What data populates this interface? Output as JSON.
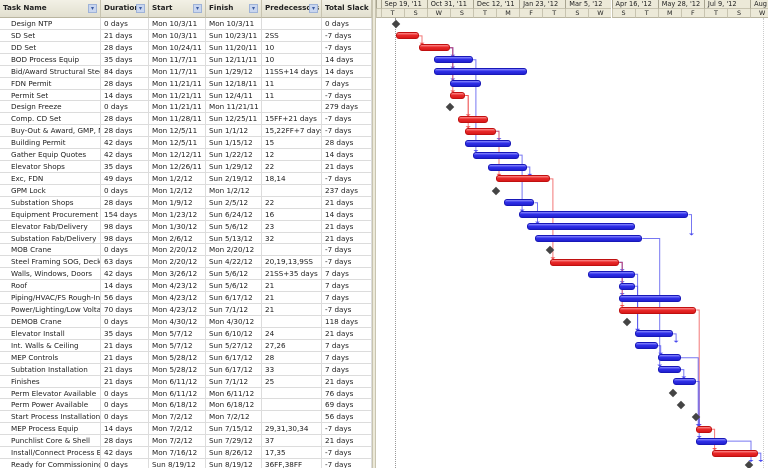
{
  "columns": [
    {
      "key": "name",
      "label": "Task Name",
      "dropdown": true
    },
    {
      "key": "duration",
      "label": "Duration",
      "dropdown": true
    },
    {
      "key": "start",
      "label": "Start",
      "dropdown": true
    },
    {
      "key": "finish",
      "label": "Finish",
      "dropdown": true
    },
    {
      "key": "predecessors",
      "label": "Predecessors",
      "dropdown": true
    },
    {
      "key": "slack",
      "label": "Total Slack",
      "dropdown": false
    }
  ],
  "dropdown_icon": "▾",
  "timescale": {
    "major": [
      "Sep 19, '11",
      "Oct 31, '11",
      "Dec 12, '11",
      "Jan 23, '12",
      "Mar 5, '12",
      "Apr 16, '12",
      "May 28, '12",
      "Jul 9, '12",
      "Aug :"
    ],
    "minor": [
      "T",
      "S",
      "W",
      "S",
      "T",
      "M",
      "F",
      "T",
      "S",
      "W",
      "S",
      "T",
      "M",
      "F",
      "T",
      "S",
      "W",
      "S",
      "T",
      "M"
    ]
  },
  "colors": {
    "critical": "#e82a2a",
    "normal": "#3030e8",
    "milestone": "#444444"
  },
  "tasks": [
    {
      "name": "Design NTP",
      "duration": "0 days",
      "start": "Mon 10/3/11",
      "finish": "Mon 10/3/11",
      "predecessors": "",
      "slack": "0 days",
      "s": 14,
      "d": 0,
      "crit": false
    },
    {
      "name": "SD Set",
      "duration": "21 days",
      "start": "Mon 10/3/11",
      "finish": "Sun 10/23/11",
      "predecessors": "2SS",
      "slack": "-7 days",
      "s": 14,
      "d": 21,
      "crit": true
    },
    {
      "name": "DD Set",
      "duration": "28 days",
      "start": "Mon 10/24/11",
      "finish": "Sun 11/20/11",
      "predecessors": "10",
      "slack": "-7 days",
      "s": 35,
      "d": 28,
      "crit": true
    },
    {
      "name": "BOD Process Equip",
      "duration": "35 days",
      "start": "Mon 11/7/11",
      "finish": "Sun 12/11/11",
      "predecessors": "10",
      "slack": "14 days",
      "s": 49,
      "d": 35,
      "crit": false
    },
    {
      "name": "Bid/Award Structural Steel, S",
      "duration": "84 days",
      "start": "Mon 11/7/11",
      "finish": "Sun 1/29/12",
      "predecessors": "11SS+14 days",
      "slack": "14 days",
      "s": 49,
      "d": 84,
      "crit": false
    },
    {
      "name": "FDN Permit",
      "duration": "28 days",
      "start": "Mon 11/21/11",
      "finish": "Sun 12/18/11",
      "predecessors": "11",
      "slack": "7 days",
      "s": 63,
      "d": 28,
      "crit": false
    },
    {
      "name": "Permit Set",
      "duration": "14 days",
      "start": "Mon 11/21/11",
      "finish": "Sun 12/4/11",
      "predecessors": "11",
      "slack": "-7 days",
      "s": 63,
      "d": 14,
      "crit": true
    },
    {
      "name": "Design Freeze",
      "duration": "0 days",
      "start": "Mon 11/21/11",
      "finish": "Mon 11/21/11",
      "predecessors": "",
      "slack": "279 days",
      "s": 63,
      "d": 0,
      "crit": false
    },
    {
      "name": "Comp. CD Set",
      "duration": "28 days",
      "start": "Mon 11/28/11",
      "finish": "Sun 12/25/11",
      "predecessors": "15FF+21 days",
      "slack": "-7 days",
      "s": 70,
      "d": 28,
      "crit": true
    },
    {
      "name": "Buy-Out & Award, GMP, Mob",
      "duration": "28 days",
      "start": "Mon 12/5/11",
      "finish": "Sun 1/1/12",
      "predecessors": "15,22FF+7 days",
      "slack": "-7 days",
      "s": 77,
      "d": 28,
      "crit": true
    },
    {
      "name": "Building Permit",
      "duration": "42 days",
      "start": "Mon 12/5/11",
      "finish": "Sun 1/15/12",
      "predecessors": "15",
      "slack": "28 days",
      "s": 77,
      "d": 42,
      "crit": false
    },
    {
      "name": "Gather Equip Quotes",
      "duration": "42 days",
      "start": "Mon 12/12/11",
      "finish": "Sun 1/22/12",
      "predecessors": "12",
      "slack": "14 days",
      "s": 84,
      "d": 42,
      "crit": false
    },
    {
      "name": "Elevator Shops",
      "duration": "35 days",
      "start": "Mon 12/26/11",
      "finish": "Sun 1/29/12",
      "predecessors": "22",
      "slack": "21 days",
      "s": 98,
      "d": 35,
      "crit": false
    },
    {
      "name": "Exc, FDN",
      "duration": "49 days",
      "start": "Mon 1/2/12",
      "finish": "Sun 2/19/12",
      "predecessors": "18,14",
      "slack": "-7 days",
      "s": 105,
      "d": 49,
      "crit": true
    },
    {
      "name": "GPM Lock",
      "duration": "0 days",
      "start": "Mon 1/2/12",
      "finish": "Mon 1/2/12",
      "predecessors": "",
      "slack": "237 days",
      "s": 105,
      "d": 0,
      "crit": false
    },
    {
      "name": "Substation Shops",
      "duration": "28 days",
      "start": "Mon 1/9/12",
      "finish": "Sun 2/5/12",
      "predecessors": "22",
      "slack": "21 days",
      "s": 112,
      "d": 28,
      "crit": false
    },
    {
      "name": "Equipment Procurement",
      "duration": "154 days",
      "start": "Mon 1/23/12",
      "finish": "Sun 6/24/12",
      "predecessors": "16",
      "slack": "14 days",
      "s": 126,
      "d": 154,
      "crit": false
    },
    {
      "name": "Elevator Fab/Delivery",
      "duration": "98 days",
      "start": "Mon 1/30/12",
      "finish": "Sun 5/6/12",
      "predecessors": "23",
      "slack": "21 days",
      "s": 133,
      "d": 98,
      "crit": false
    },
    {
      "name": "Substation Fab/Delivery",
      "duration": "98 days",
      "start": "Mon 2/6/12",
      "finish": "Sun 5/13/12",
      "predecessors": "32",
      "slack": "21 days",
      "s": 140,
      "d": 98,
      "crit": false
    },
    {
      "name": "MOB Crane",
      "duration": "0 days",
      "start": "Mon 2/20/12",
      "finish": "Mon 2/20/12",
      "predecessors": "",
      "slack": "-7 days",
      "s": 154,
      "d": 0,
      "crit": false
    },
    {
      "name": "Steel Framing SOG, Decks",
      "duration": "63 days",
      "start": "Mon 2/20/12",
      "finish": "Sun 4/22/12",
      "predecessors": "20,19,13,9SS",
      "slack": "-7 days",
      "s": 154,
      "d": 63,
      "crit": true
    },
    {
      "name": "Walls, Windows, Doors",
      "duration": "42 days",
      "start": "Mon 3/26/12",
      "finish": "Sun 5/6/12",
      "predecessors": "21SS+35 days",
      "slack": "7 days",
      "s": 189,
      "d": 42,
      "crit": false
    },
    {
      "name": "Roof",
      "duration": "14 days",
      "start": "Mon 4/23/12",
      "finish": "Sun 5/6/12",
      "predecessors": "21",
      "slack": "7 days",
      "s": 217,
      "d": 14,
      "crit": false
    },
    {
      "name": "Piping/HVAC/FS Rough-In",
      "duration": "56 days",
      "start": "Mon 4/23/12",
      "finish": "Sun 6/17/12",
      "predecessors": "21",
      "slack": "7 days",
      "s": 217,
      "d": 56,
      "crit": false
    },
    {
      "name": "Power/Lighting/Low Voltage",
      "duration": "70 days",
      "start": "Mon 4/23/12",
      "finish": "Sun 7/1/12",
      "predecessors": "21",
      "slack": "-7 days",
      "s": 217,
      "d": 70,
      "crit": true
    },
    {
      "name": "DEMOB Crane",
      "duration": "0 days",
      "start": "Mon 4/30/12",
      "finish": "Mon 4/30/12",
      "predecessors": "",
      "slack": "118 days",
      "s": 224,
      "d": 0,
      "crit": false
    },
    {
      "name": "Elevator Install",
      "duration": "35 days",
      "start": "Mon 5/7/12",
      "finish": "Sun 6/10/12",
      "predecessors": "24",
      "slack": "21 days",
      "s": 231,
      "d": 35,
      "crit": false
    },
    {
      "name": "Int. Walls & Ceiling",
      "duration": "21 days",
      "start": "Mon 5/7/12",
      "finish": "Sun 5/27/12",
      "predecessors": "27,26",
      "slack": "7 days",
      "s": 231,
      "d": 21,
      "crit": false
    },
    {
      "name": "MEP Controls",
      "duration": "21 days",
      "start": "Mon 5/28/12",
      "finish": "Sun 6/17/12",
      "predecessors": "28",
      "slack": "7 days",
      "s": 252,
      "d": 21,
      "crit": false
    },
    {
      "name": "Subtation Installation",
      "duration": "21 days",
      "start": "Mon 5/28/12",
      "finish": "Sun 6/17/12",
      "predecessors": "33",
      "slack": "7 days",
      "s": 252,
      "d": 21,
      "crit": false
    },
    {
      "name": "Finishes",
      "duration": "21 days",
      "start": "Mon 6/11/12",
      "finish": "Sun 7/1/12",
      "predecessors": "25",
      "slack": "21 days",
      "s": 266,
      "d": 21,
      "crit": false
    },
    {
      "name": "Perm Elevator Available",
      "duration": "0 days",
      "start": "Mon 6/11/12",
      "finish": "Mon 6/11/12",
      "predecessors": "",
      "slack": "76 days",
      "s": 266,
      "d": 0,
      "crit": false
    },
    {
      "name": "Perm Power Available",
      "duration": "0 days",
      "start": "Mon 6/18/12",
      "finish": "Mon 6/18/12",
      "predecessors": "",
      "slack": "69 days",
      "s": 273,
      "d": 0,
      "crit": false
    },
    {
      "name": "Start Process Installation",
      "duration": "0 days",
      "start": "Mon 7/2/12",
      "finish": "Mon 7/2/12",
      "predecessors": "",
      "slack": "56 days",
      "s": 287,
      "d": 0,
      "crit": false
    },
    {
      "name": "MEP Process Equip",
      "duration": "14 days",
      "start": "Mon 7/2/12",
      "finish": "Sun 7/15/12",
      "predecessors": "29,31,30,34",
      "slack": "-7 days",
      "s": 287,
      "d": 14,
      "crit": true
    },
    {
      "name": "Punchlist Core & Shell",
      "duration": "28 days",
      "start": "Mon 7/2/12",
      "finish": "Sun 7/29/12",
      "predecessors": "37",
      "slack": "21 days",
      "s": 287,
      "d": 28,
      "crit": false
    },
    {
      "name": "Install/Connect Process Equ",
      "duration": "42 days",
      "start": "Mon 7/16/12",
      "finish": "Sun 8/26/12",
      "predecessors": "17,35",
      "slack": "-7 days",
      "s": 301,
      "d": 42,
      "crit": true
    },
    {
      "name": "Ready for Commissioning",
      "duration": "0 days",
      "start": "Sun 8/19/12",
      "finish": "Sun 8/19/12",
      "predecessors": "36FF,38FF",
      "slack": "-7 days",
      "s": 335,
      "d": 0,
      "crit": false
    }
  ]
}
